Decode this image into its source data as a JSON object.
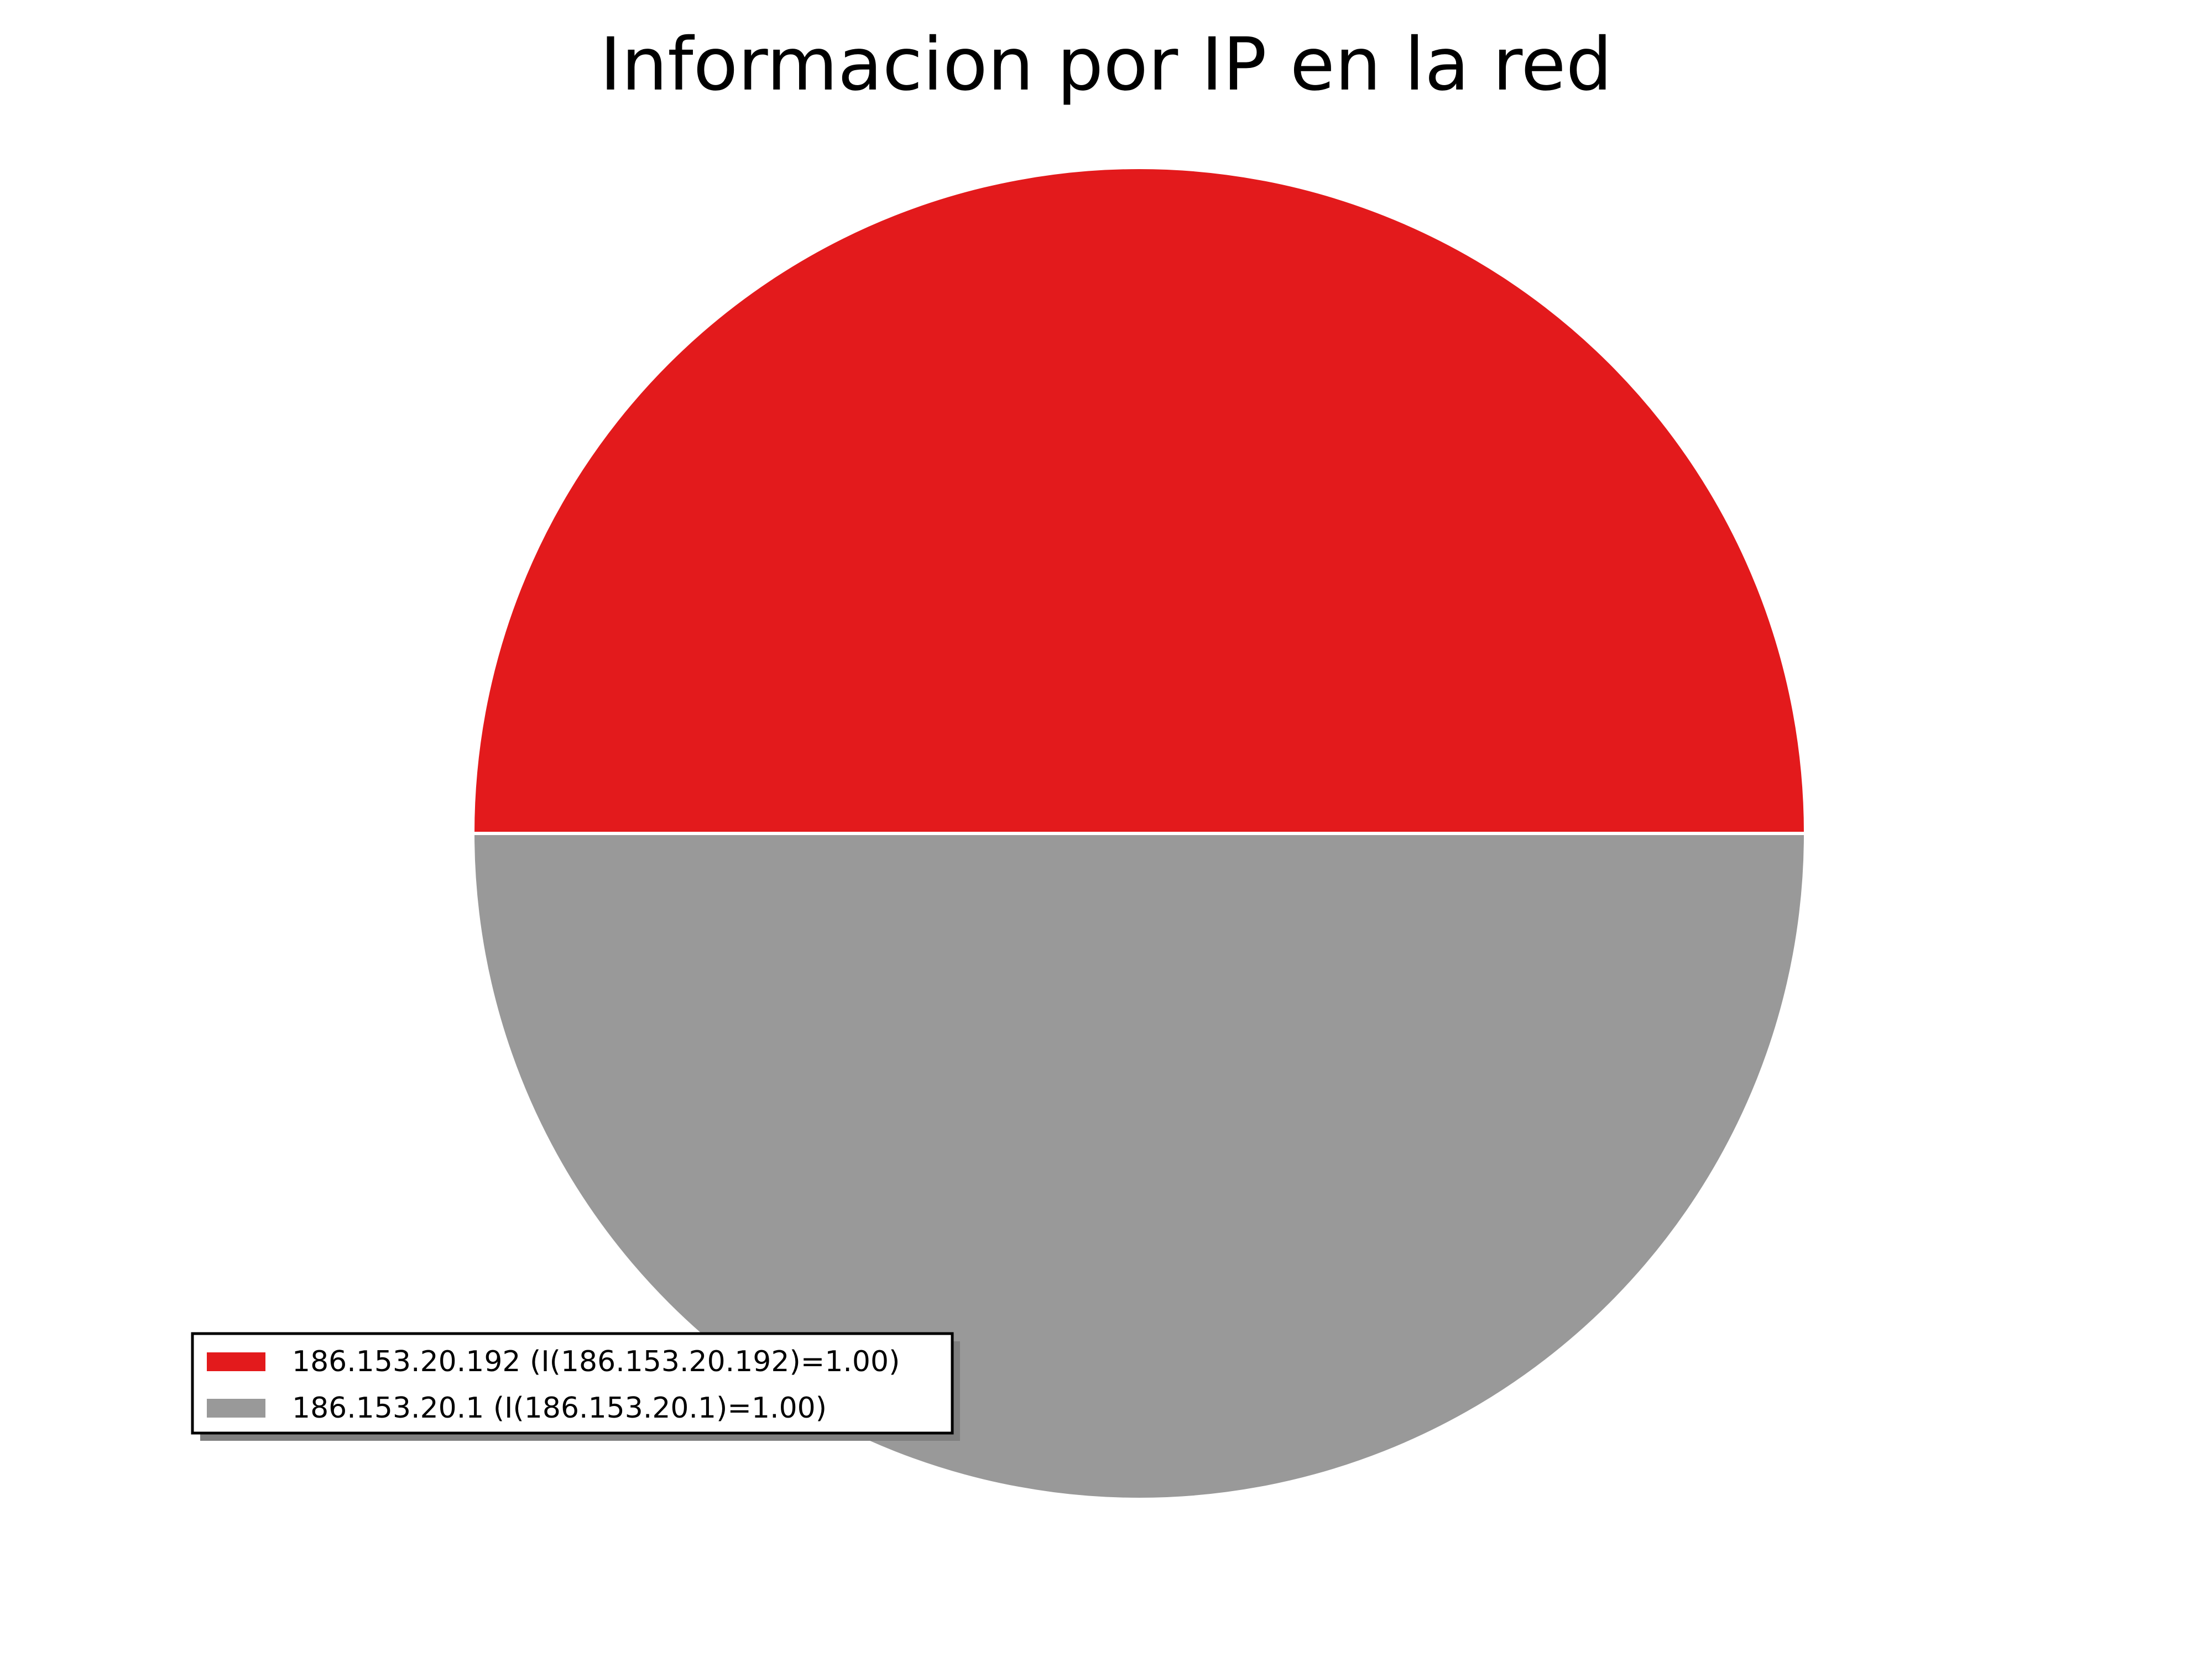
{
  "chart_data": {
    "type": "pie",
    "title": "Informacion por IP en la red",
    "start_angle_deg": 0,
    "direction": "counterclockwise",
    "slices": [
      {
        "label": "186.153.20.192 (I(186.153.20.192)=1.00)",
        "value": 1.0,
        "color": "#e31a1c"
      },
      {
        "label": "186.153.20.1 (I(186.153.20.1)=1.00)",
        "value": 1.0,
        "color": "#999999"
      }
    ],
    "legend_position": "lower-left",
    "slice_edge_color": "#ffffff"
  }
}
